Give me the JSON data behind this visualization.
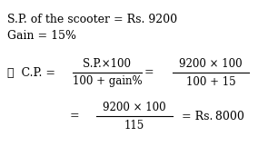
{
  "background_color": "#ffffff",
  "line1": "S.P. of the scooter = Rs. 9200",
  "line2": "Gain = 15%",
  "therefore": "∴",
  "cp_label": "C.P. =",
  "frac1_num": "S.P.×100",
  "frac1_den": "100 + gain%",
  "frac2_num": "9200 × 100",
  "frac2_den": "100 + 15",
  "frac3_num": "9200 × 100",
  "frac3_den": "115",
  "result": "= Rs. 8000",
  "fig_width": 3.06,
  "fig_height": 1.83,
  "dpi": 100
}
